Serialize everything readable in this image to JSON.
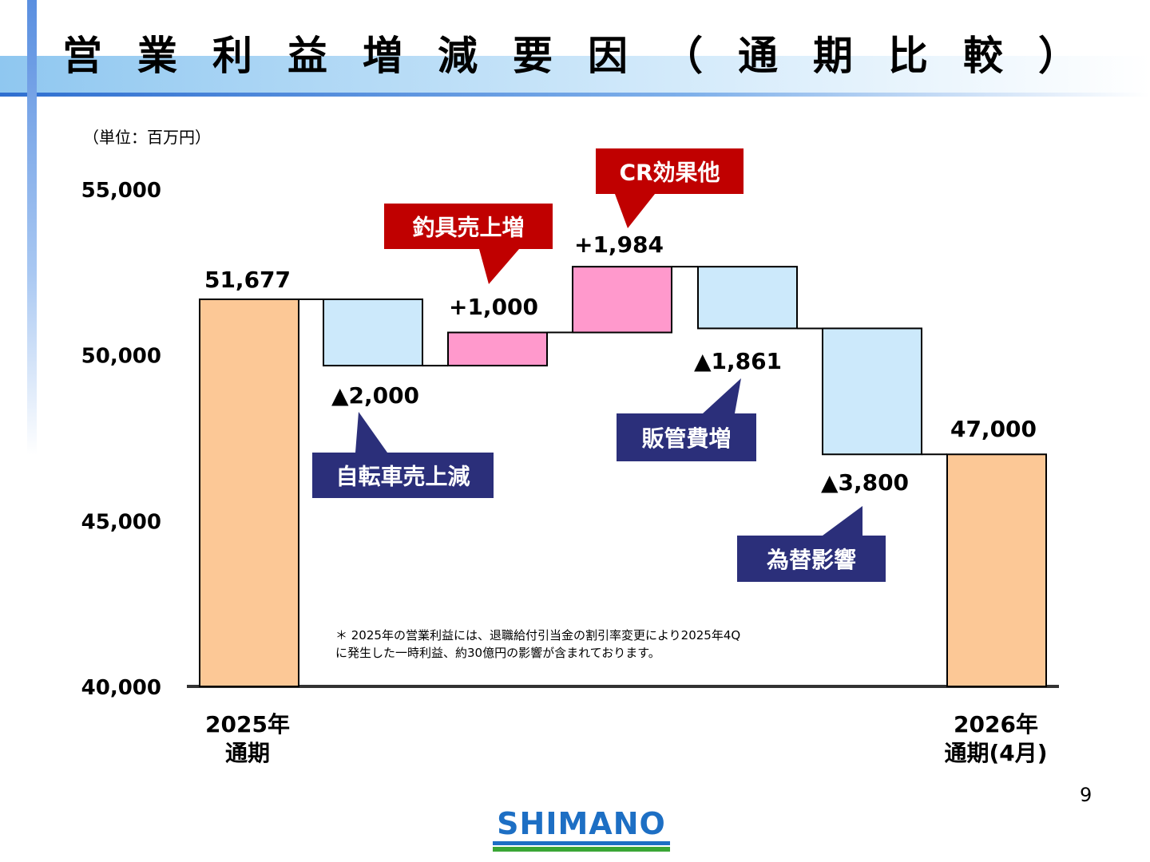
{
  "page_title": "営業利益増減要因（通期比較）",
  "unit_label": "（単位：百万円）",
  "footnote": {
    "line1": "＊ 2025年の営業利益には、退職給付引当金の割引率変更により2025年4Q",
    "line2": "に発生した一時利益、約30億円の影響が含まれております。"
  },
  "page_number": "9",
  "logo": {
    "text": "SHIMANO",
    "blue": "#1d6fc4",
    "green": "#3aa636"
  },
  "chart_data": {
    "type": "bar",
    "subtype": "waterfall",
    "ylim": [
      40000,
      55000
    ],
    "yticks": [
      "40,000",
      "45,000",
      "50,000",
      "55,000"
    ],
    "ytick_values": [
      40000,
      45000,
      50000,
      55000
    ],
    "categories": [
      "2025年\n通期",
      "自転車売上減",
      "釣具売上増",
      "CR効果他",
      "販管費増",
      "為替影響",
      "2026年\n通期(4月)"
    ],
    "bars": [
      {
        "kind": "total",
        "low": 40000,
        "high": 51677,
        "value_label": "51,677",
        "category_lines": [
          "2025年",
          "通期"
        ]
      },
      {
        "kind": "decrease",
        "low": 49677,
        "high": 51677,
        "value_label": "▲2,000",
        "callout": "自転車売上減"
      },
      {
        "kind": "increase",
        "low": 49677,
        "high": 50677,
        "value_label": "+1,000",
        "callout": "釣具売上増"
      },
      {
        "kind": "increase",
        "low": 50677,
        "high": 52661,
        "value_label": "+1,984",
        "callout": "CR効果他"
      },
      {
        "kind": "decrease",
        "low": 50800,
        "high": 52661,
        "value_label": "▲1,861",
        "callout": "販管費増"
      },
      {
        "kind": "decrease",
        "low": 47000,
        "high": 50800,
        "value_label": "▲3,800",
        "callout": "為替影響"
      },
      {
        "kind": "total",
        "low": 40000,
        "high": 47000,
        "value_label": "47,000",
        "category_lines": [
          "2026年",
          "通期(4月)"
        ]
      }
    ],
    "colors": {
      "total": "#fcc896",
      "increase": "#ff99cc",
      "decrease": "#cce9fb",
      "callout_red": "#c00000",
      "callout_navy": "#2b2f7a"
    },
    "grid": false,
    "legend": "none"
  }
}
